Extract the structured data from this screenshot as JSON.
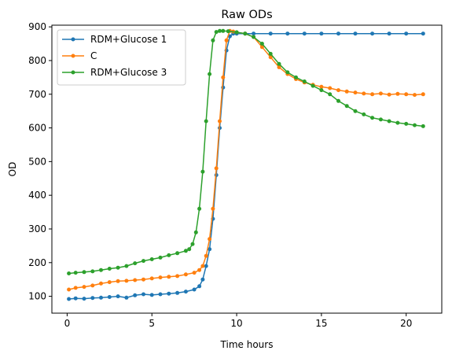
{
  "chart_data": {
    "type": "line",
    "title": "Raw ODs",
    "xlabel": "Time hours",
    "ylabel": "OD",
    "xlim": [
      -0.9,
      22.1
    ],
    "ylim": [
      50,
      905
    ],
    "xticks": [
      0,
      5,
      10,
      15,
      20
    ],
    "yticks": [
      100,
      200,
      300,
      400,
      500,
      600,
      700,
      800,
      900
    ],
    "grid": false,
    "legend_position": "upper-left",
    "marker": "circle",
    "series": [
      {
        "name": "RDM+Glucose 1",
        "color": "#1f77b4",
        "x": [
          0.1,
          0.5,
          1,
          1.5,
          2,
          2.5,
          3,
          3.5,
          4,
          4.5,
          5,
          5.5,
          6,
          6.5,
          7,
          7.5,
          7.8,
          8,
          8.2,
          8.4,
          8.6,
          8.8,
          9,
          9.2,
          9.4,
          9.6,
          9.8,
          10,
          10.5,
          11,
          12,
          13,
          14,
          15,
          16,
          17,
          18,
          19,
          20,
          21
        ],
        "y": [
          92,
          94,
          93,
          95,
          96,
          98,
          100,
          96,
          103,
          106,
          104,
          106,
          108,
          110,
          114,
          120,
          130,
          150,
          190,
          240,
          330,
          460,
          600,
          720,
          830,
          872,
          880,
          880,
          880,
          880,
          880,
          880,
          880,
          880,
          880,
          880,
          880,
          880,
          880,
          880
        ]
      },
      {
        "name": "C",
        "color": "#ff7f0e",
        "x": [
          0.1,
          0.5,
          1,
          1.5,
          2,
          2.5,
          3,
          3.5,
          4,
          4.5,
          5,
          5.5,
          6,
          6.5,
          7,
          7.5,
          7.8,
          8,
          8.2,
          8.4,
          8.6,
          8.8,
          9,
          9.2,
          9.4,
          9.6,
          9.8,
          10,
          10.5,
          11,
          11.5,
          12,
          12.5,
          13,
          13.5,
          14,
          14.5,
          15,
          15.5,
          16,
          16.5,
          17,
          17.5,
          18,
          18.5,
          19,
          19.5,
          20,
          20.5,
          21
        ],
        "y": [
          120,
          125,
          128,
          132,
          138,
          142,
          145,
          146,
          148,
          150,
          153,
          156,
          158,
          160,
          165,
          170,
          178,
          190,
          220,
          270,
          360,
          480,
          620,
          750,
          860,
          888,
          886,
          884,
          880,
          870,
          840,
          810,
          780,
          760,
          745,
          735,
          728,
          722,
          718,
          712,
          708,
          705,
          702,
          700,
          702,
          699,
          701,
          700,
          698,
          700
        ]
      },
      {
        "name": "RDM+Glucose 3",
        "color": "#2ca02c",
        "x": [
          0.1,
          0.5,
          1,
          1.5,
          2,
          2.5,
          3,
          3.5,
          4,
          4.5,
          5,
          5.5,
          6,
          6.5,
          7,
          7.2,
          7.4,
          7.6,
          7.8,
          8,
          8.2,
          8.4,
          8.6,
          8.8,
          9,
          9.2,
          9.5,
          10,
          10.5,
          11,
          11.5,
          12,
          12.5,
          13,
          13.5,
          14,
          14.5,
          15,
          15.5,
          16,
          16.5,
          17,
          17.5,
          18,
          18.5,
          19,
          19.5,
          20,
          20.5,
          21
        ],
        "y": [
          168,
          170,
          172,
          174,
          178,
          182,
          185,
          190,
          198,
          205,
          210,
          215,
          222,
          228,
          235,
          240,
          255,
          290,
          360,
          470,
          620,
          760,
          860,
          885,
          888,
          888,
          887,
          884,
          880,
          870,
          850,
          820,
          790,
          765,
          750,
          738,
          725,
          712,
          700,
          680,
          665,
          650,
          640,
          630,
          625,
          620,
          615,
          612,
          608,
          605
        ]
      }
    ]
  }
}
